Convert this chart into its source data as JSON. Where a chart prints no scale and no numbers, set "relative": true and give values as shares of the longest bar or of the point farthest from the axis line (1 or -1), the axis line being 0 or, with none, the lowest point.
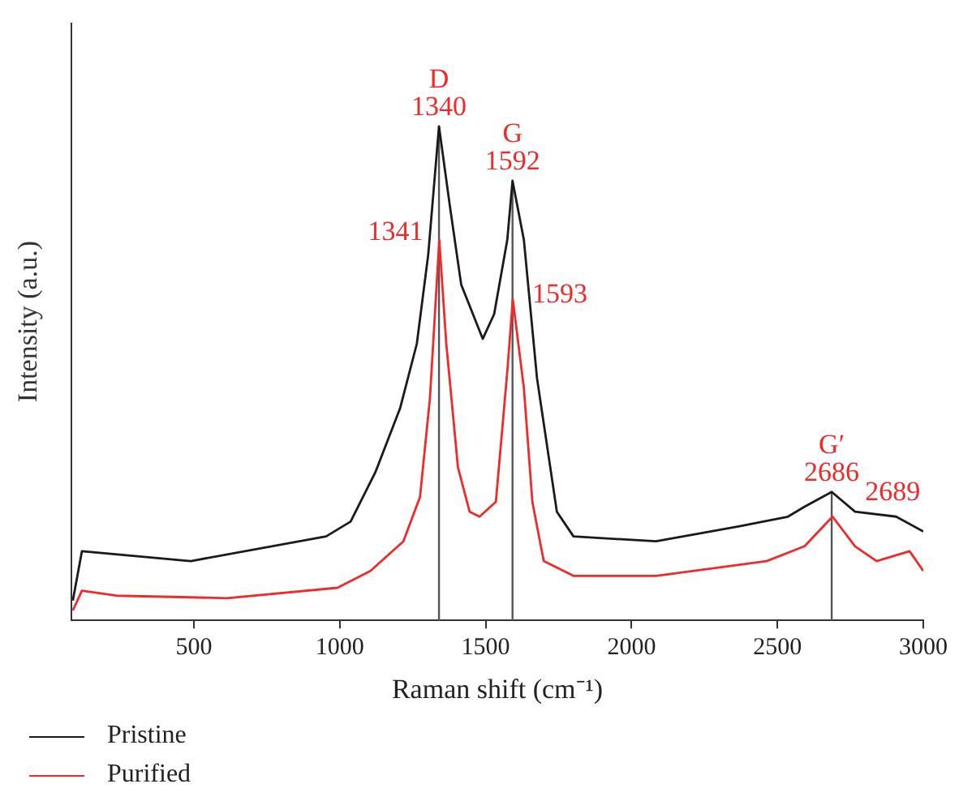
{
  "chart_data": {
    "type": "line",
    "relative": true,
    "xlabel": "Raman shift (cm⁻¹)",
    "ylabel": "Intensity (a.u.)",
    "xlim": [
      80,
      3000
    ],
    "xticks": [
      500,
      1000,
      1500,
      2000,
      2500,
      3000
    ],
    "grid": false,
    "legend": "bottom left",
    "marker": "none",
    "line_style": "solid",
    "series": [
      {
        "name": "Pristine",
        "color": "#1a1a1a",
        "x": [
          85,
          116,
          489,
          953,
          1037,
          1122,
          1207,
          1264,
          1303,
          1340,
          1377,
          1416,
          1490,
          1529,
          1574,
          1592,
          1631,
          1676,
          1744,
          1801,
          2084,
          2366,
          2536,
          2593,
          2686,
          2766,
          2907,
          3000
        ],
        "values": [
          0.04,
          0.14,
          0.12,
          0.17,
          0.2,
          0.3,
          0.43,
          0.56,
          0.74,
          1,
          0.84,
          0.68,
          0.57,
          0.62,
          0.77,
          0.89,
          0.77,
          0.49,
          0.22,
          0.17,
          0.16,
          0.19,
          0.21,
          0.23,
          0.26,
          0.22,
          0.21,
          0.18
        ]
      },
      {
        "name": "Purified",
        "color": "#ee2a2a",
        "x": [
          85,
          116,
          234,
          613,
          992,
          1105,
          1218,
          1275,
          1309,
          1341,
          1365,
          1405,
          1445,
          1479,
          1535,
          1575,
          1593,
          1631,
          1660,
          1699,
          1801,
          2084,
          2463,
          2593,
          2689,
          2766,
          2840,
          2953,
          3000
        ],
        "values": [
          0.02,
          0.06,
          0.05,
          0.045,
          0.066,
          0.1,
          0.16,
          0.25,
          0.45,
          0.77,
          0.56,
          0.31,
          0.22,
          0.21,
          0.24,
          0.51,
          0.65,
          0.47,
          0.24,
          0.12,
          0.09,
          0.09,
          0.12,
          0.15,
          0.21,
          0.15,
          0.12,
          0.14,
          0.1
        ]
      }
    ],
    "ref_lines": [
      {
        "axis": "x",
        "value": 1340,
        "color": "#555555"
      },
      {
        "axis": "x",
        "value": 1592,
        "color": "#555555"
      },
      {
        "axis": "x",
        "value": 2686,
        "color": "#555555"
      }
    ],
    "annotations": [
      {
        "text": "D",
        "x": 1340,
        "y": 1
      },
      {
        "text": "1340",
        "x": 1340,
        "y": 1
      },
      {
        "text": "G",
        "x": 1592,
        "y": 0.89
      },
      {
        "text": "1592",
        "x": 1592,
        "y": 0.89
      },
      {
        "text": "G′",
        "x": 2686,
        "y": 0.26
      },
      {
        "text": "2686",
        "x": 2686,
        "y": 0.26
      },
      {
        "text": "1341",
        "x": 1341,
        "y": 0.77
      },
      {
        "text": "1593",
        "x": 1593,
        "y": 0.65
      },
      {
        "text": "2689",
        "x": 2689,
        "y": 0.21
      }
    ]
  }
}
